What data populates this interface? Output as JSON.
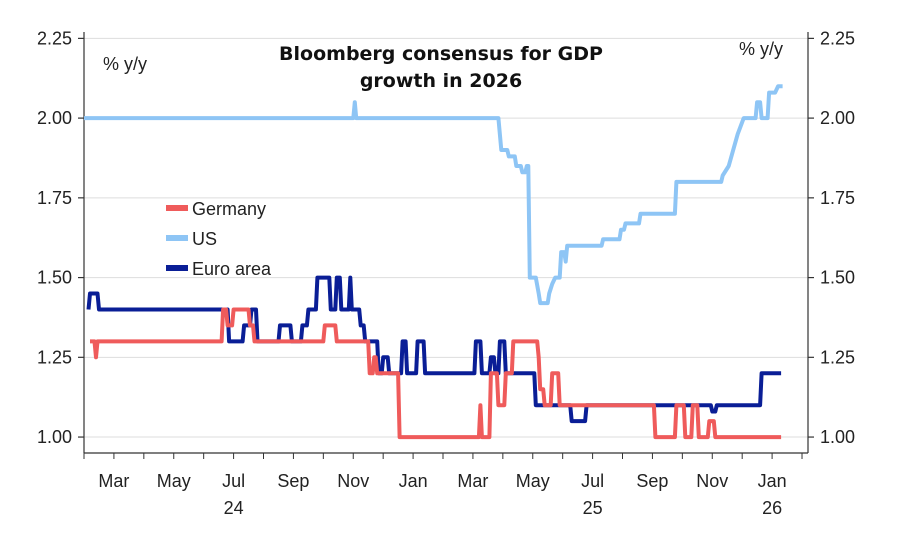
{
  "chart_data": {
    "type": "line",
    "title_lines": [
      "Bloomberg consensus for GDP",
      "growth in 2026"
    ],
    "left_unit": "% y/y",
    "right_unit": "% y/y",
    "ylim": [
      0.95,
      2.27
    ],
    "y_ticks": [
      1.0,
      1.25,
      1.5,
      1.75,
      2.0,
      2.25
    ],
    "y_tick_labels": [
      "1.00",
      "1.25",
      "1.50",
      "1.75",
      "2.00",
      "2.25"
    ],
    "xlim": [
      0,
      24.2
    ],
    "x_ticks": [
      {
        "t": 1,
        "label": "Mar",
        "year": ""
      },
      {
        "t": 3,
        "label": "May",
        "year": ""
      },
      {
        "t": 5,
        "label": "Jul",
        "year": "24"
      },
      {
        "t": 7,
        "label": "Sep",
        "year": ""
      },
      {
        "t": 9,
        "label": "Nov",
        "year": ""
      },
      {
        "t": 11,
        "label": "Jan",
        "year": ""
      },
      {
        "t": 13,
        "label": "Mar",
        "year": ""
      },
      {
        "t": 15,
        "label": "May",
        "year": ""
      },
      {
        "t": 17,
        "label": "Jul",
        "year": "25"
      },
      {
        "t": 19,
        "label": "Sep",
        "year": ""
      },
      {
        "t": 21,
        "label": "Nov",
        "year": ""
      },
      {
        "t": 23,
        "label": "Jan",
        "year": "26"
      }
    ],
    "x_unit_note": "months since Jan 2024",
    "legend": [
      {
        "name": "Germany",
        "color": "#ef5b5b"
      },
      {
        "name": "US",
        "color": "#8ec5f5"
      },
      {
        "name": "Euro area",
        "color": "#0a1e96"
      }
    ],
    "series": [
      {
        "name": "US",
        "color": "#8ec5f5",
        "points": [
          [
            0.0,
            2.0
          ],
          [
            9.0,
            2.0
          ],
          [
            9.05,
            2.05
          ],
          [
            9.1,
            2.0
          ],
          [
            13.85,
            2.0
          ],
          [
            13.95,
            1.9
          ],
          [
            14.15,
            1.9
          ],
          [
            14.2,
            1.88
          ],
          [
            14.4,
            1.88
          ],
          [
            14.45,
            1.85
          ],
          [
            14.6,
            1.85
          ],
          [
            14.65,
            1.83
          ],
          [
            14.75,
            1.83
          ],
          [
            14.8,
            1.85
          ],
          [
            14.85,
            1.85
          ],
          [
            14.9,
            1.5
          ],
          [
            15.1,
            1.5
          ],
          [
            15.2,
            1.45
          ],
          [
            15.25,
            1.42
          ],
          [
            15.5,
            1.42
          ],
          [
            15.55,
            1.45
          ],
          [
            15.65,
            1.48
          ],
          [
            15.75,
            1.5
          ],
          [
            15.9,
            1.5
          ],
          [
            15.95,
            1.58
          ],
          [
            16.05,
            1.58
          ],
          [
            16.1,
            1.55
          ],
          [
            16.15,
            1.6
          ],
          [
            17.3,
            1.6
          ],
          [
            17.35,
            1.62
          ],
          [
            17.9,
            1.62
          ],
          [
            17.95,
            1.65
          ],
          [
            18.05,
            1.65
          ],
          [
            18.1,
            1.67
          ],
          [
            18.55,
            1.67
          ],
          [
            18.6,
            1.7
          ],
          [
            19.75,
            1.7
          ],
          [
            19.8,
            1.8
          ],
          [
            21.3,
            1.8
          ],
          [
            21.35,
            1.82
          ],
          [
            21.55,
            1.85
          ],
          [
            21.7,
            1.9
          ],
          [
            21.85,
            1.95
          ],
          [
            22.05,
            2.0
          ],
          [
            22.45,
            2.0
          ],
          [
            22.5,
            2.05
          ],
          [
            22.6,
            2.05
          ],
          [
            22.65,
            2.0
          ],
          [
            22.85,
            2.0
          ],
          [
            22.9,
            2.08
          ],
          [
            23.1,
            2.08
          ],
          [
            23.2,
            2.1
          ],
          [
            23.35,
            2.1
          ]
        ]
      },
      {
        "name": "Euro area",
        "color": "#0a1e96",
        "points": [
          [
            0.15,
            1.4
          ],
          [
            0.2,
            1.45
          ],
          [
            0.45,
            1.45
          ],
          [
            0.5,
            1.4
          ],
          [
            4.8,
            1.4
          ],
          [
            4.85,
            1.3
          ],
          [
            5.3,
            1.3
          ],
          [
            5.35,
            1.35
          ],
          [
            5.55,
            1.35
          ],
          [
            5.6,
            1.4
          ],
          [
            5.75,
            1.4
          ],
          [
            5.8,
            1.3
          ],
          [
            6.5,
            1.3
          ],
          [
            6.55,
            1.35
          ],
          [
            6.9,
            1.35
          ],
          [
            6.95,
            1.3
          ],
          [
            7.25,
            1.3
          ],
          [
            7.3,
            1.35
          ],
          [
            7.45,
            1.35
          ],
          [
            7.5,
            1.4
          ],
          [
            7.75,
            1.4
          ],
          [
            7.8,
            1.5
          ],
          [
            8.2,
            1.5
          ],
          [
            8.25,
            1.4
          ],
          [
            8.4,
            1.4
          ],
          [
            8.45,
            1.5
          ],
          [
            8.55,
            1.5
          ],
          [
            8.6,
            1.4
          ],
          [
            8.85,
            1.4
          ],
          [
            8.9,
            1.5
          ],
          [
            8.95,
            1.4
          ],
          [
            9.2,
            1.4
          ],
          [
            9.25,
            1.35
          ],
          [
            9.35,
            1.35
          ],
          [
            9.4,
            1.3
          ],
          [
            9.8,
            1.3
          ],
          [
            9.85,
            1.2
          ],
          [
            9.95,
            1.2
          ],
          [
            10.0,
            1.25
          ],
          [
            10.15,
            1.25
          ],
          [
            10.2,
            1.2
          ],
          [
            10.6,
            1.2
          ],
          [
            10.65,
            1.3
          ],
          [
            10.75,
            1.3
          ],
          [
            10.8,
            1.2
          ],
          [
            11.1,
            1.2
          ],
          [
            11.15,
            1.3
          ],
          [
            11.35,
            1.3
          ],
          [
            11.4,
            1.2
          ],
          [
            13.05,
            1.2
          ],
          [
            13.1,
            1.3
          ],
          [
            13.25,
            1.3
          ],
          [
            13.3,
            1.2
          ],
          [
            13.55,
            1.2
          ],
          [
            13.6,
            1.25
          ],
          [
            13.7,
            1.25
          ],
          [
            13.75,
            1.2
          ],
          [
            13.85,
            1.2
          ],
          [
            13.9,
            1.3
          ],
          [
            14.05,
            1.3
          ],
          [
            14.1,
            1.2
          ],
          [
            15.05,
            1.2
          ],
          [
            15.1,
            1.1
          ],
          [
            16.25,
            1.1
          ],
          [
            16.3,
            1.05
          ],
          [
            16.75,
            1.05
          ],
          [
            16.8,
            1.1
          ],
          [
            19.05,
            1.1
          ],
          [
            19.1,
            1.1
          ],
          [
            20.95,
            1.1
          ],
          [
            21.0,
            1.08
          ],
          [
            21.1,
            1.08
          ],
          [
            21.15,
            1.1
          ],
          [
            22.6,
            1.1
          ],
          [
            22.65,
            1.2
          ],
          [
            23.3,
            1.2
          ]
        ]
      },
      {
        "name": "Germany",
        "color": "#ef5b5b",
        "points": [
          [
            0.2,
            1.3
          ],
          [
            0.35,
            1.3
          ],
          [
            0.4,
            1.25
          ],
          [
            0.45,
            1.3
          ],
          [
            4.6,
            1.3
          ],
          [
            4.65,
            1.4
          ],
          [
            4.75,
            1.4
          ],
          [
            4.8,
            1.35
          ],
          [
            4.95,
            1.35
          ],
          [
            5.0,
            1.4
          ],
          [
            5.5,
            1.4
          ],
          [
            5.55,
            1.35
          ],
          [
            5.65,
            1.35
          ],
          [
            5.7,
            1.3
          ],
          [
            8.0,
            1.3
          ],
          [
            8.05,
            1.35
          ],
          [
            8.4,
            1.35
          ],
          [
            8.45,
            1.3
          ],
          [
            9.5,
            1.3
          ],
          [
            9.55,
            1.2
          ],
          [
            9.65,
            1.2
          ],
          [
            9.7,
            1.25
          ],
          [
            9.75,
            1.25
          ],
          [
            9.8,
            1.2
          ],
          [
            10.5,
            1.2
          ],
          [
            10.55,
            1.0
          ],
          [
            13.2,
            1.0
          ],
          [
            13.25,
            1.1
          ],
          [
            13.3,
            1.0
          ],
          [
            13.55,
            1.0
          ],
          [
            13.6,
            1.2
          ],
          [
            13.8,
            1.2
          ],
          [
            13.85,
            1.1
          ],
          [
            14.05,
            1.1
          ],
          [
            14.1,
            1.2
          ],
          [
            14.3,
            1.2
          ],
          [
            14.35,
            1.3
          ],
          [
            15.15,
            1.3
          ],
          [
            15.2,
            1.25
          ],
          [
            15.25,
            1.15
          ],
          [
            15.35,
            1.15
          ],
          [
            15.4,
            1.1
          ],
          [
            15.6,
            1.1
          ],
          [
            15.65,
            1.2
          ],
          [
            15.85,
            1.2
          ],
          [
            15.9,
            1.1
          ],
          [
            19.05,
            1.1
          ],
          [
            19.1,
            1.0
          ],
          [
            19.75,
            1.0
          ],
          [
            19.8,
            1.1
          ],
          [
            20.05,
            1.1
          ],
          [
            20.1,
            1.0
          ],
          [
            20.3,
            1.0
          ],
          [
            20.35,
            1.1
          ],
          [
            20.5,
            1.1
          ],
          [
            20.55,
            1.0
          ],
          [
            20.85,
            1.0
          ],
          [
            20.9,
            1.05
          ],
          [
            21.05,
            1.05
          ],
          [
            21.1,
            1.0
          ],
          [
            23.3,
            1.0
          ]
        ]
      }
    ]
  }
}
